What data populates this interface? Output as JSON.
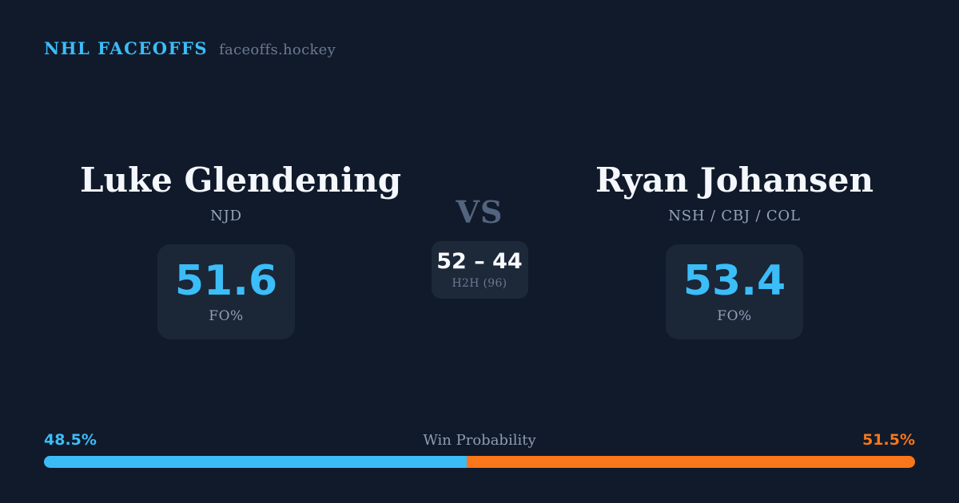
{
  "header": {
    "brand": "NHL FACEOFFS",
    "site": "faceoffs.hockey"
  },
  "players": [
    {
      "name": "Luke Glendening",
      "teams": "NJD",
      "fo_pct": "51.6",
      "fo_label": "FO%"
    },
    {
      "name": "Ryan Johansen",
      "teams": "NSH / CBJ / COL",
      "fo_pct": "53.4",
      "fo_label": "FO%"
    }
  ],
  "matchup": {
    "vs_label": "VS",
    "h2h_score": "52 – 44",
    "h2h_label": "H2H (96)"
  },
  "win_probability": {
    "title": "Win Probability",
    "left_label": "48.5%",
    "right_label": "51.5%",
    "left_value": 48.5,
    "right_value": 51.5,
    "left_color": "#3bbcf5",
    "right_color": "#f9761a"
  },
  "colors": {
    "background": "#111a2b",
    "panel": "#1b2637",
    "accent_blue": "#3bbdf8",
    "accent_orange": "#f9761a",
    "text_primary": "#f4f7fb",
    "text_muted": "#94a4b8",
    "vs_text": "#53647e"
  },
  "chart_data": {
    "type": "bar",
    "title": "Win Probability",
    "orientation": "horizontal-stacked",
    "categories": [
      "Luke Glendening (NJD)",
      "Ryan Johansen (NSH / CBJ / COL)"
    ],
    "values": [
      48.5,
      51.5
    ],
    "value_unit": "%",
    "segment_colors": [
      "#3bbcf5",
      "#f9761a"
    ],
    "xlim": [
      0,
      100
    ],
    "legend": "off",
    "grid": "off",
    "related_stats": {
      "faceoff_pct": [
        51.6,
        53.4
      ],
      "head_to_head": {
        "left_wins": 52,
        "right_wins": 44,
        "total_faceoffs": 96
      }
    }
  }
}
